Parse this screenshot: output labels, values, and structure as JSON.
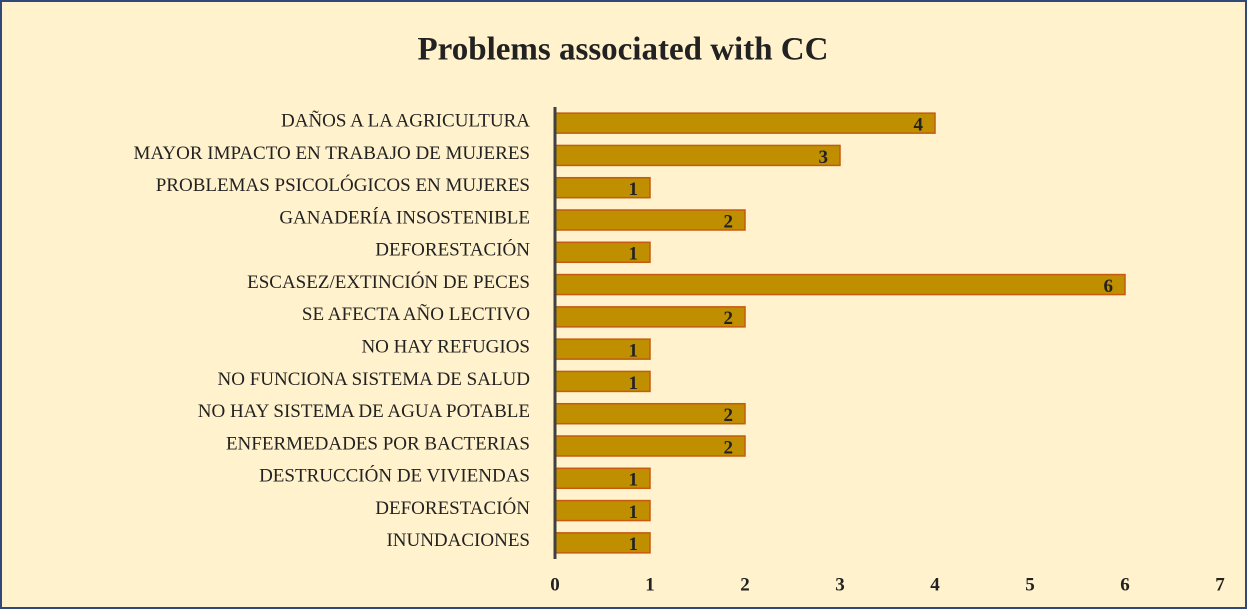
{
  "chart_data": {
    "type": "barh",
    "title": "Problems associated with CC",
    "categories": [
      "DAÑOS A LA AGRICULTURA",
      "MAYOR IMPACTO EN TRABAJO DE MUJERES",
      "PROBLEMAS PSICOLÓGICOS EN MUJERES",
      "GANADERÍA INSOSTENIBLE",
      "DEFORESTACIÓN",
      "ESCASEZ/EXTINCIÓN DE PECES",
      "SE AFECTA AÑO LECTIVO",
      "NO HAY REFUGIOS",
      "NO FUNCIONA SISTEMA DE SALUD",
      "NO HAY SISTEMA DE AGUA POTABLE",
      "ENFERMEDADES POR BACTERIAS",
      "DESTRUCCIÓN DE VIVIENDAS",
      "DEFORESTACIÓN",
      "INUNDACIONES"
    ],
    "values": [
      4,
      3,
      1,
      2,
      1,
      6,
      2,
      1,
      1,
      2,
      2,
      1,
      1,
      1
    ],
    "color": "#bf8f00",
    "edge_color": "#c55a11",
    "xlim": [
      0,
      7
    ],
    "xticks": [
      0,
      1,
      2,
      3,
      4,
      5,
      6,
      7
    ],
    "grid": false
  }
}
